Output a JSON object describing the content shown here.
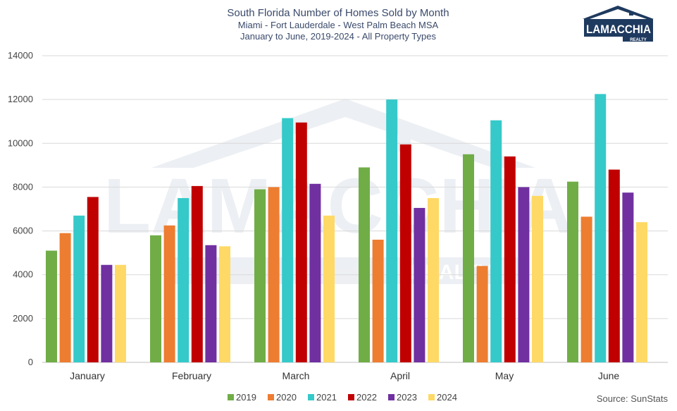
{
  "chart_data": {
    "type": "bar",
    "title": "South Florida Number of Homes Sold by Month",
    "subtitle_lines": [
      "Miami - Fort Lauderdale - West Palm Beach MSA",
      "January to June, 2019-2024 - All Property Types"
    ],
    "categories": [
      "January",
      "February",
      "March",
      "April",
      "May",
      "June"
    ],
    "series": [
      {
        "name": "2019",
        "color": "#70ad47",
        "values": [
          5100,
          5800,
          7900,
          8900,
          9500,
          8250
        ]
      },
      {
        "name": "2020",
        "color": "#ed7d31",
        "values": [
          5900,
          6250,
          8000,
          5600,
          4400,
          6650
        ]
      },
      {
        "name": "2021",
        "color": "#35c9c9",
        "values": [
          6700,
          7500,
          11150,
          12000,
          11050,
          12250
        ]
      },
      {
        "name": "2022",
        "color": "#c00000",
        "values": [
          7550,
          8050,
          10950,
          9950,
          9400,
          8800
        ]
      },
      {
        "name": "2023",
        "color": "#7030a0",
        "values": [
          4450,
          5350,
          8150,
          7050,
          8000,
          7750
        ]
      },
      {
        "name": "2024",
        "color": "#ffd966",
        "values": [
          4450,
          5300,
          6700,
          7500,
          7600,
          6400
        ]
      }
    ],
    "ylim": [
      0,
      14000
    ],
    "yticks": [
      "0",
      "2000",
      "4000",
      "6000",
      "8000",
      "10000",
      "12000",
      "14000"
    ],
    "grid": true,
    "legend_position": "bottom-center",
    "source": "Source: SunStats"
  },
  "logo": {
    "text": "LAMACCHIA",
    "subtext": "REALTY",
    "icon": "house-roof-logo-icon",
    "color": "#1f3a5f"
  }
}
